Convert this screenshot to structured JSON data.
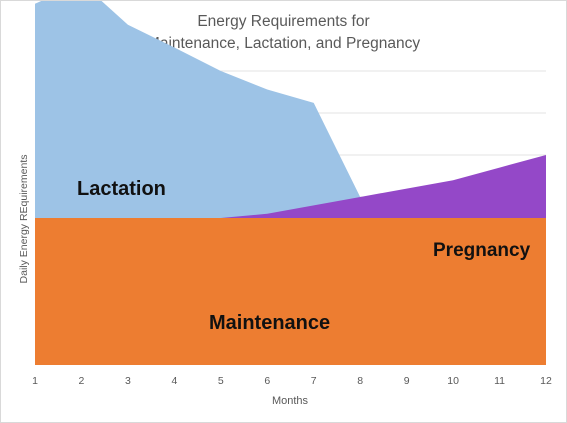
{
  "chart_data": {
    "type": "area",
    "title_line1": "Energy Requirements for",
    "title_line2": "Maintenance, Lactation, and Pregnancy",
    "xlabel": "Months",
    "ylabel": "Daily Energy REquirements",
    "x": [
      1,
      2,
      3,
      4,
      5,
      6,
      7,
      8,
      9,
      10,
      11,
      12
    ],
    "xlim": [
      1,
      12
    ],
    "ylim": [
      0,
      3.5
    ],
    "y_gridlines": [
      3.5,
      3.0,
      2.5,
      2.0,
      1.5,
      1.0
    ],
    "grid": true,
    "series": [
      {
        "name": "Maintenance",
        "color": "#ED7D31",
        "x": [
          1,
          12
        ],
        "lower": [
          0,
          0
        ],
        "upper": [
          1.75,
          1.75
        ]
      },
      {
        "name": "Lactation",
        "color": "#9DC3E6",
        "x": [
          1,
          2,
          3,
          4,
          5,
          6,
          7,
          8
        ],
        "lower": [
          1.75,
          1.75,
          1.75,
          1.75,
          1.75,
          1.75,
          1.75,
          1.75
        ],
        "upper": [
          4.3,
          4.55,
          4.05,
          3.78,
          3.5,
          3.28,
          3.12,
          2.0
        ]
      },
      {
        "name": "Pregnancy",
        "color": "#9448C8",
        "x": [
          5,
          6,
          7,
          8,
          9,
          10,
          11,
          12
        ],
        "lower": [
          1.75,
          1.75,
          1.75,
          1.75,
          1.75,
          1.75,
          1.75,
          1.75
        ],
        "upper": [
          1.75,
          1.8,
          1.9,
          2.0,
          2.1,
          2.2,
          2.35,
          2.5
        ]
      }
    ]
  }
}
